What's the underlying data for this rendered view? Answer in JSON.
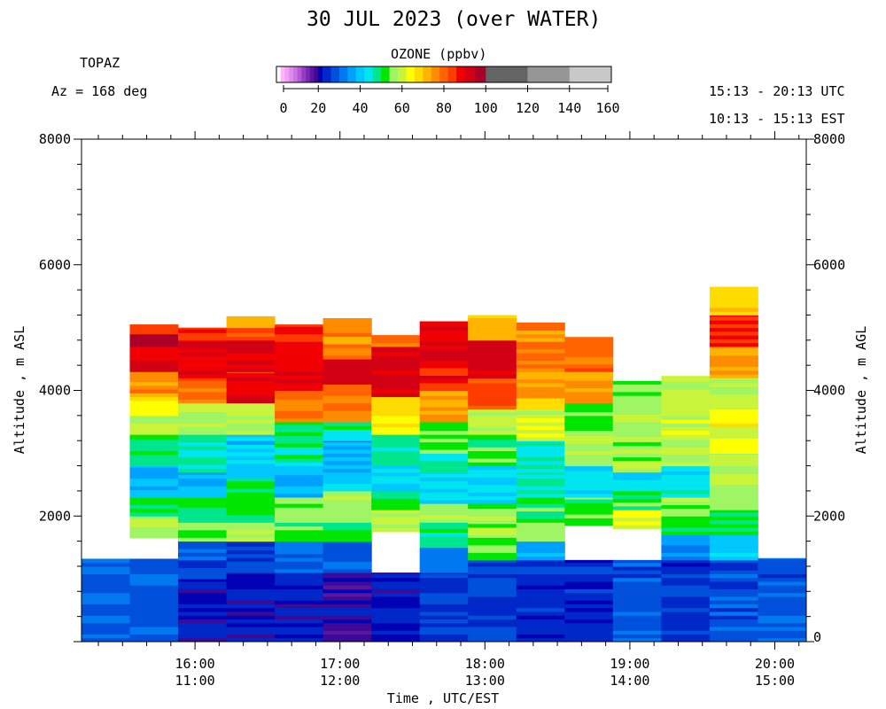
{
  "header": {
    "title": "30 JUL 2023 (over WATER)",
    "instrument": "TOPAZ",
    "azimuth": "Az = 168 deg",
    "utc_range": "15:13 - 20:13 UTC",
    "est_range": "10:13 - 15:13 EST",
    "colorbar_label": "OZONE (ppbv)"
  },
  "colorbar": {
    "ticks": [
      "0",
      "20",
      "40",
      "60",
      "80",
      "100",
      "120",
      "140",
      "160"
    ],
    "bins": [
      {
        "lo": 0,
        "hi": 2,
        "color": "#ffffff"
      },
      {
        "lo": 2,
        "hi": 4,
        "color": "#ffb4ff"
      },
      {
        "lo": 4,
        "hi": 6,
        "color": "#f5a0f5"
      },
      {
        "lo": 6,
        "hi": 8,
        "color": "#e08ce6"
      },
      {
        "lo": 8,
        "hi": 10,
        "color": "#c878e6"
      },
      {
        "lo": 10,
        "hi": 12,
        "color": "#b45ad2"
      },
      {
        "lo": 12,
        "hi": 14,
        "color": "#963cbe"
      },
      {
        "lo": 14,
        "hi": 16,
        "color": "#7828b4"
      },
      {
        "lo": 16,
        "hi": 18,
        "color": "#5a14a0"
      },
      {
        "lo": 18,
        "hi": 20,
        "color": "#3c0a96"
      },
      {
        "lo": 20,
        "hi": 22,
        "color": "#0000b4"
      },
      {
        "lo": 22,
        "hi": 26,
        "color": "#0028c8"
      },
      {
        "lo": 26,
        "hi": 30,
        "color": "#0050dc"
      },
      {
        "lo": 30,
        "hi": 34,
        "color": "#0078f0"
      },
      {
        "lo": 34,
        "hi": 38,
        "color": "#00a0ff"
      },
      {
        "lo": 38,
        "hi": 42,
        "color": "#00c8ff"
      },
      {
        "lo": 42,
        "hi": 46,
        "color": "#00e6f0"
      },
      {
        "lo": 46,
        "hi": 50,
        "color": "#00e68c"
      },
      {
        "lo": 50,
        "hi": 54,
        "color": "#00e600"
      },
      {
        "lo": 54,
        "hi": 58,
        "color": "#a0f564"
      },
      {
        "lo": 58,
        "hi": 62,
        "color": "#c8f53c"
      },
      {
        "lo": 62,
        "hi": 66,
        "color": "#ffff00"
      },
      {
        "lo": 66,
        "hi": 70,
        "color": "#ffdc00"
      },
      {
        "lo": 70,
        "hi": 74,
        "color": "#ffb400"
      },
      {
        "lo": 74,
        "hi": 78,
        "color": "#ff8c00"
      },
      {
        "lo": 78,
        "hi": 82,
        "color": "#ff6400"
      },
      {
        "lo": 82,
        "hi": 86,
        "color": "#ff3c00"
      },
      {
        "lo": 86,
        "hi": 90,
        "color": "#f00000"
      },
      {
        "lo": 90,
        "hi": 95,
        "color": "#d20014"
      },
      {
        "lo": 95,
        "hi": 100,
        "color": "#aa0028"
      },
      {
        "lo": 100,
        "hi": 120,
        "color": "#646464"
      },
      {
        "lo": 120,
        "hi": 140,
        "color": "#969696"
      },
      {
        "lo": 140,
        "hi": 160,
        "color": "#c8c8c8"
      }
    ]
  },
  "axes": {
    "x_label": "Time , UTC/EST",
    "y_left_label": "Altitude , m ASL",
    "y_right_label": "Altitude , m AGL",
    "y_left_ticks": [
      "2000",
      "4000",
      "6000",
      "8000"
    ],
    "y_right_ticks": [
      "0",
      "2000",
      "4000",
      "6000",
      "8000"
    ],
    "x_ticks": [
      {
        "utc": "16:00",
        "est": "11:00",
        "h": 16.0
      },
      {
        "utc": "17:00",
        "est": "12:00",
        "h": 17.0
      },
      {
        "utc": "18:00",
        "est": "13:00",
        "h": 18.0
      },
      {
        "utc": "19:00",
        "est": "14:00",
        "h": 19.0
      },
      {
        "utc": "20:00",
        "est": "15:00",
        "h": 20.0
      }
    ]
  },
  "chart_data": {
    "type": "heatmap",
    "title": "30 JUL 2023 (over WATER)",
    "variable": "OZONE (ppbv)",
    "xlabel": "Time , UTC/EST",
    "ylabel": "Altitude , m ASL",
    "xlim_utc_hours": [
      15.217,
      20.217
    ],
    "ylim": [
      0,
      8000
    ],
    "colorbar_range": [
      0,
      160
    ],
    "columns": [
      {
        "t0": 15.217,
        "t1": 15.55,
        "profile": [
          [
            0,
            1320,
            30
          ]
        ]
      },
      {
        "t0": 15.55,
        "t1": 15.883,
        "profile": [
          [
            0,
            1320,
            30
          ],
          [
            1320,
            1650,
            null
          ],
          [
            1650,
            2000,
            56
          ],
          [
            2000,
            2300,
            50
          ],
          [
            2300,
            2800,
            38
          ],
          [
            2800,
            3300,
            50
          ],
          [
            3300,
            3600,
            58
          ],
          [
            3600,
            3900,
            64
          ],
          [
            3900,
            4300,
            76
          ],
          [
            4300,
            4700,
            90
          ],
          [
            4700,
            4900,
            98
          ],
          [
            4900,
            5050,
            84
          ]
        ]
      },
      {
        "t0": 15.883,
        "t1": 16.217,
        "profile": [
          [
            0,
            1000,
            22
          ],
          [
            1000,
            1600,
            28
          ],
          [
            1600,
            1900,
            56
          ],
          [
            1900,
            2300,
            50
          ],
          [
            2300,
            2700,
            38
          ],
          [
            2700,
            3300,
            46
          ],
          [
            3300,
            3800,
            58
          ],
          [
            3800,
            4200,
            80
          ],
          [
            4200,
            4600,
            90
          ],
          [
            4600,
            4800,
            92
          ],
          [
            4800,
            5000,
            86
          ]
        ]
      },
      {
        "t0": 16.217,
        "t1": 16.55,
        "profile": [
          [
            0,
            1100,
            22
          ],
          [
            1100,
            1600,
            26
          ],
          [
            1600,
            1900,
            56
          ],
          [
            1900,
            2200,
            52
          ],
          [
            2200,
            2600,
            48
          ],
          [
            2600,
            3300,
            40
          ],
          [
            3300,
            3800,
            60
          ],
          [
            3800,
            4300,
            88
          ],
          [
            4300,
            4800,
            92
          ],
          [
            4800,
            5000,
            84
          ],
          [
            5000,
            5180,
            74
          ]
        ]
      },
      {
        "t0": 16.55,
        "t1": 16.883,
        "profile": [
          [
            0,
            1100,
            22
          ],
          [
            1100,
            1600,
            30
          ],
          [
            1600,
            1900,
            52
          ],
          [
            1900,
            2300,
            56
          ],
          [
            2300,
            2800,
            38
          ],
          [
            2800,
            3500,
            48
          ],
          [
            3500,
            4000,
            78
          ],
          [
            4000,
            4600,
            90
          ],
          [
            4600,
            5050,
            86
          ]
        ]
      },
      {
        "t0": 16.883,
        "t1": 17.217,
        "profile": [
          [
            0,
            1100,
            20
          ],
          [
            1100,
            1600,
            28
          ],
          [
            1600,
            1900,
            52
          ],
          [
            1900,
            2400,
            56
          ],
          [
            2400,
            2700,
            40
          ],
          [
            2700,
            3200,
            36
          ],
          [
            3200,
            3500,
            48
          ],
          [
            3500,
            4100,
            78
          ],
          [
            4100,
            4500,
            94
          ],
          [
            4500,
            5150,
            76
          ]
        ]
      },
      {
        "t0": 17.217,
        "t1": 17.55,
        "profile": [
          [
            0,
            1100,
            22
          ],
          [
            1100,
            1750,
            null
          ],
          [
            1750,
            2100,
            58
          ],
          [
            2100,
            2400,
            52
          ],
          [
            2400,
            2800,
            42
          ],
          [
            2800,
            3300,
            46
          ],
          [
            3300,
            3900,
            66
          ],
          [
            3900,
            4700,
            90
          ],
          [
            4700,
            4880,
            80
          ]
        ]
      },
      {
        "t0": 17.55,
        "t1": 17.883,
        "profile": [
          [
            0,
            1100,
            26
          ],
          [
            1100,
            1500,
            32
          ],
          [
            1500,
            1900,
            48
          ],
          [
            1900,
            2200,
            56
          ],
          [
            2200,
            2700,
            42
          ],
          [
            2700,
            3000,
            46
          ],
          [
            3000,
            3500,
            52
          ],
          [
            3500,
            4000,
            74
          ],
          [
            4000,
            5100,
            88
          ]
        ]
      },
      {
        "t0": 17.883,
        "t1": 18.217,
        "profile": [
          [
            0,
            1300,
            26
          ],
          [
            1300,
            1700,
            54
          ],
          [
            1700,
            2200,
            56
          ],
          [
            2200,
            2800,
            42
          ],
          [
            2800,
            3300,
            52
          ],
          [
            3300,
            3700,
            60
          ],
          [
            3700,
            4200,
            82
          ],
          [
            4200,
            4800,
            92
          ],
          [
            4800,
            5200,
            72
          ]
        ]
      },
      {
        "t0": 18.217,
        "t1": 18.55,
        "profile": [
          [
            0,
            1300,
            24
          ],
          [
            1300,
            1600,
            38
          ],
          [
            1600,
            1900,
            56
          ],
          [
            1900,
            2300,
            52
          ],
          [
            2300,
            2700,
            46
          ],
          [
            2700,
            3200,
            46
          ],
          [
            3200,
            3700,
            60
          ],
          [
            3700,
            4300,
            72
          ],
          [
            4300,
            5080,
            76
          ]
        ]
      },
      {
        "t0": 18.55,
        "t1": 18.883,
        "profile": [
          [
            0,
            1300,
            24
          ],
          [
            1300,
            1850,
            null
          ],
          [
            1850,
            2300,
            52
          ],
          [
            2300,
            2800,
            44
          ],
          [
            2800,
            3300,
            56
          ],
          [
            3300,
            3800,
            54
          ],
          [
            3800,
            4300,
            74
          ],
          [
            4300,
            4850,
            80
          ]
        ]
      },
      {
        "t0": 18.883,
        "t1": 19.217,
        "profile": [
          [
            0,
            1300,
            28
          ],
          [
            1300,
            1800,
            null
          ],
          [
            1800,
            2100,
            62
          ],
          [
            2100,
            2400,
            52
          ],
          [
            2400,
            2700,
            44
          ],
          [
            2700,
            3200,
            56
          ],
          [
            3200,
            4150,
            56
          ]
        ]
      },
      {
        "t0": 19.217,
        "t1": 19.55,
        "profile": [
          [
            0,
            1300,
            24
          ],
          [
            1300,
            1700,
            34
          ],
          [
            1700,
            2000,
            52
          ],
          [
            2000,
            2300,
            56
          ],
          [
            2300,
            2800,
            44
          ],
          [
            2800,
            3300,
            58
          ],
          [
            3300,
            4230,
            60
          ]
        ]
      },
      {
        "t0": 19.55,
        "t1": 19.883,
        "profile": [
          [
            0,
            1300,
            28
          ],
          [
            1300,
            1700,
            40
          ],
          [
            1700,
            2100,
            52
          ],
          [
            2100,
            2500,
            56
          ],
          [
            2500,
            3000,
            58
          ],
          [
            3000,
            3700,
            64
          ],
          [
            3700,
            4200,
            60
          ],
          [
            4200,
            4700,
            74
          ],
          [
            4700,
            5200,
            86
          ],
          [
            5200,
            5650,
            70
          ]
        ]
      },
      {
        "t0": 19.883,
        "t1": 20.217,
        "profile": [
          [
            0,
            1330,
            28
          ]
        ]
      }
    ]
  }
}
